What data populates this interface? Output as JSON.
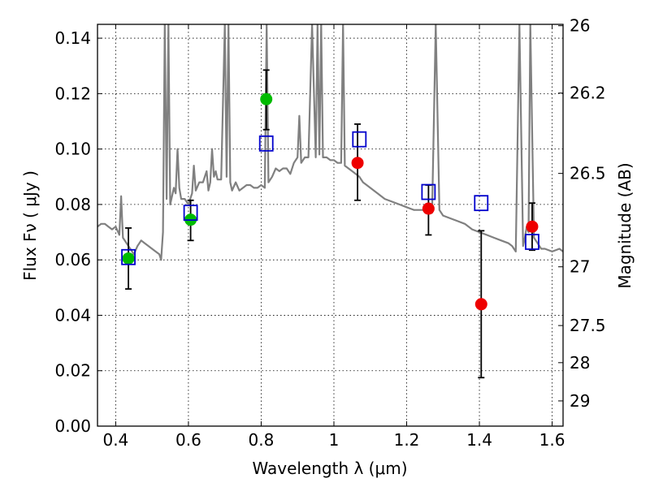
{
  "chart_data": {
    "type": "scatter",
    "xlabel": "Wavelength  λ (μm)",
    "ylabel": "Flux  Fν  ( μJy )",
    "y2label": "Magnitude (AB)",
    "xlim": [
      0.35,
      1.63
    ],
    "ylim": [
      0.0,
      0.145
    ],
    "grid": true,
    "x_ticks": [
      0.4,
      0.6,
      0.8,
      1.0,
      1.2,
      1.4,
      1.6
    ],
    "x_tick_labels": [
      "0.4",
      "0.6",
      "0.8",
      "1",
      "1.2",
      "1.4",
      "1.6"
    ],
    "y_ticks": [
      0.0,
      0.02,
      0.04,
      0.06,
      0.08,
      0.1,
      0.12,
      0.14
    ],
    "y_tick_labels": [
      "0.00",
      "0.02",
      "0.04",
      "0.06",
      "0.08",
      "0.10",
      "0.12",
      "0.14"
    ],
    "y2_ticks": [
      {
        "label": "26",
        "flux": 0.1445
      },
      {
        "label": "26.2",
        "flux": 0.1202
      },
      {
        "label": "26.5",
        "flux": 0.0912
      },
      {
        "label": "27",
        "flux": 0.0575
      },
      {
        "label": "27.5",
        "flux": 0.0363
      },
      {
        "label": "28",
        "flux": 0.0229
      },
      {
        "label": "29",
        "flux": 0.0091
      }
    ],
    "colors": {
      "model": "#808080",
      "green": "#00bb00",
      "red": "#ee0000",
      "square": "#0000cc",
      "errorbar": "#000000"
    },
    "series": [
      {
        "kind": "model-spectrum",
        "x": [
          0.35,
          0.36,
          0.37,
          0.38,
          0.39,
          0.4,
          0.41,
          0.415,
          0.42,
          0.43,
          0.44,
          0.45,
          0.46,
          0.47,
          0.48,
          0.49,
          0.5,
          0.51,
          0.52,
          0.525,
          0.53,
          0.535,
          0.54,
          0.545,
          0.55,
          0.56,
          0.565,
          0.57,
          0.575,
          0.58,
          0.59,
          0.6,
          0.61,
          0.615,
          0.62,
          0.63,
          0.64,
          0.65,
          0.655,
          0.66,
          0.665,
          0.67,
          0.675,
          0.68,
          0.69,
          0.7,
          0.705,
          0.71,
          0.715,
          0.72,
          0.73,
          0.74,
          0.75,
          0.76,
          0.77,
          0.78,
          0.79,
          0.8,
          0.81,
          0.815,
          0.82,
          0.83,
          0.84,
          0.85,
          0.86,
          0.87,
          0.88,
          0.89,
          0.9,
          0.905,
          0.91,
          0.92,
          0.93,
          0.94,
          0.95,
          0.955,
          0.96,
          0.965,
          0.97,
          0.98,
          0.99,
          1.0,
          1.01,
          1.02,
          1.025,
          1.03,
          1.04,
          1.05,
          1.06,
          1.07,
          1.08,
          1.09,
          1.1,
          1.12,
          1.14,
          1.16,
          1.18,
          1.2,
          1.22,
          1.24,
          1.26,
          1.27,
          1.28,
          1.29,
          1.3,
          1.32,
          1.34,
          1.36,
          1.38,
          1.4,
          1.42,
          1.44,
          1.46,
          1.48,
          1.49,
          1.5,
          1.51,
          1.52,
          1.525,
          1.53,
          1.535,
          1.54,
          1.55,
          1.56,
          1.565,
          1.57,
          1.58,
          1.6,
          1.62,
          1.63
        ],
        "y": [
          0.072,
          0.073,
          0.073,
          0.072,
          0.071,
          0.072,
          0.069,
          0.083,
          0.068,
          0.066,
          0.064,
          0.062,
          0.065,
          0.067,
          0.066,
          0.065,
          0.064,
          0.063,
          0.062,
          0.06,
          0.07,
          0.145,
          0.082,
          0.145,
          0.08,
          0.086,
          0.084,
          0.1,
          0.086,
          0.082,
          0.082,
          0.08,
          0.084,
          0.094,
          0.085,
          0.088,
          0.088,
          0.092,
          0.085,
          0.088,
          0.1,
          0.09,
          0.092,
          0.089,
          0.089,
          0.145,
          0.09,
          0.145,
          0.088,
          0.085,
          0.088,
          0.085,
          0.086,
          0.087,
          0.087,
          0.086,
          0.086,
          0.087,
          0.086,
          0.145,
          0.088,
          0.09,
          0.093,
          0.092,
          0.093,
          0.093,
          0.091,
          0.095,
          0.097,
          0.112,
          0.095,
          0.097,
          0.097,
          0.145,
          0.097,
          0.145,
          0.098,
          0.145,
          0.097,
          0.097,
          0.096,
          0.096,
          0.095,
          0.095,
          0.145,
          0.094,
          0.093,
          0.092,
          0.091,
          0.09,
          0.088,
          0.087,
          0.086,
          0.084,
          0.082,
          0.081,
          0.08,
          0.079,
          0.078,
          0.078,
          0.078,
          0.077,
          0.145,
          0.078,
          0.076,
          0.075,
          0.074,
          0.073,
          0.071,
          0.07,
          0.069,
          0.068,
          0.067,
          0.066,
          0.065,
          0.063,
          0.145,
          0.065,
          0.068,
          0.072,
          0.07,
          0.145,
          0.068,
          0.066,
          0.065,
          0.064,
          0.064,
          0.063,
          0.064,
          0.063
        ]
      },
      {
        "kind": "observed",
        "color": "green",
        "points": [
          {
            "x": 0.435,
            "y": 0.0605,
            "err_low": 0.0495,
            "err_high": 0.0715
          },
          {
            "x": 0.606,
            "y": 0.0745,
            "err_low": 0.067,
            "err_high": 0.0815
          },
          {
            "x": 0.814,
            "y": 0.118,
            "err_low": 0.107,
            "err_high": 0.1285
          }
        ]
      },
      {
        "kind": "observed",
        "color": "red",
        "points": [
          {
            "x": 1.065,
            "y": 0.095,
            "err_low": 0.0815,
            "err_high": 0.109
          },
          {
            "x": 1.26,
            "y": 0.0785,
            "err_low": 0.069,
            "err_high": 0.087
          },
          {
            "x": 1.405,
            "y": 0.044,
            "err_low": 0.0175,
            "err_high": 0.0705
          },
          {
            "x": 1.545,
            "y": 0.072,
            "err_low": 0.0635,
            "err_high": 0.0805
          }
        ]
      },
      {
        "kind": "model-photometry",
        "color": "square",
        "points": [
          {
            "x": 0.435,
            "y": 0.061
          },
          {
            "x": 0.606,
            "y": 0.077
          },
          {
            "x": 0.814,
            "y": 0.102
          },
          {
            "x": 1.07,
            "y": 0.1035
          },
          {
            "x": 1.26,
            "y": 0.0845
          },
          {
            "x": 1.405,
            "y": 0.0805
          },
          {
            "x": 1.545,
            "y": 0.0665
          }
        ]
      }
    ]
  }
}
